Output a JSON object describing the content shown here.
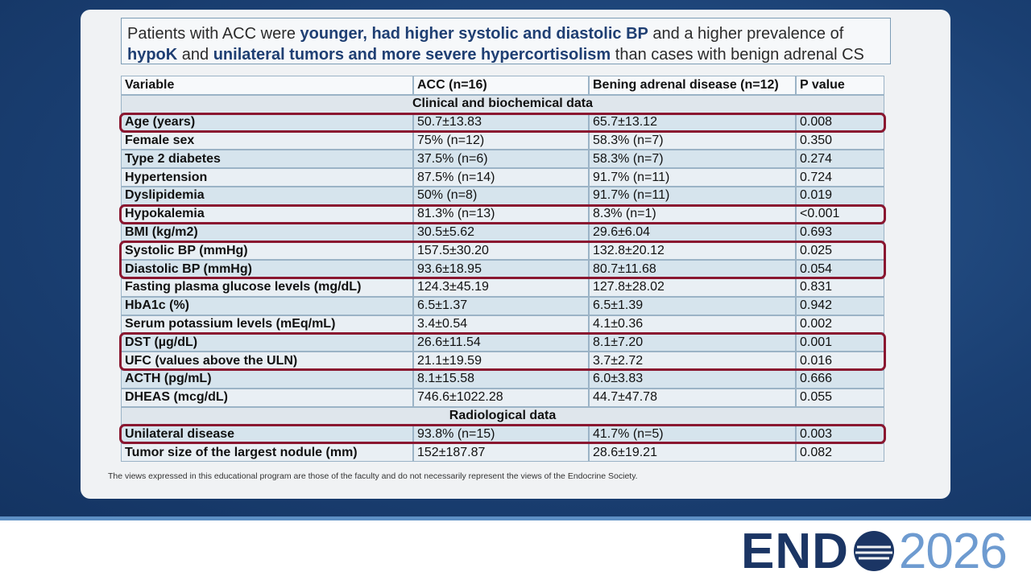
{
  "header": {
    "title_parts": [
      {
        "text": "Patients with ACC were ",
        "bold": false
      },
      {
        "text": "younger, had higher systolic and diastolic BP",
        "bold": true
      },
      {
        "text": " and a higher prevalence of ",
        "bold": false
      },
      {
        "text": "hypoK",
        "bold": true
      },
      {
        "text": " and ",
        "bold": false
      },
      {
        "text": "unilateral tumors and more severe hypercortisolism",
        "bold": true
      },
      {
        "text": " than cases with benign adrenal CS",
        "bold": false
      }
    ]
  },
  "table": {
    "columns": [
      "Variable",
      "ACC (n=16)",
      "Bening adrenal disease (n=12)",
      "P value"
    ],
    "rows": [
      {
        "section": "Clinical and biochemical data"
      },
      {
        "cells": [
          "Age (years)",
          "50.7±13.83",
          "65.7±13.12",
          "0.008"
        ],
        "highlight": true
      },
      {
        "cells": [
          "Female sex",
          "75% (n=12)",
          "58.3% (n=7)",
          "0.350"
        ],
        "highlight": false
      },
      {
        "cells": [
          "Type 2 diabetes",
          "37.5% (n=6)",
          "58.3% (n=7)",
          "0.274"
        ],
        "highlight": false
      },
      {
        "cells": [
          "Hypertension",
          "87.5% (n=14)",
          "91.7% (n=11)",
          "0.724"
        ],
        "highlight": false
      },
      {
        "cells": [
          "Dyslipidemia",
          "50% (n=8)",
          "91.7% (n=11)",
          "0.019"
        ],
        "highlight": false
      },
      {
        "cells": [
          "Hypokalemia",
          "81.3% (n=13)",
          "8.3% (n=1)",
          "<0.001"
        ],
        "highlight": true
      },
      {
        "cells": [
          "BMI (kg/m2)",
          "30.5±5.62",
          "29.6±6.04",
          "0.693"
        ],
        "highlight": false
      },
      {
        "cells": [
          "Systolic BP (mmHg)",
          "157.5±30.20",
          "132.8±20.12",
          "0.025"
        ],
        "highlight": true
      },
      {
        "cells": [
          "Diastolic BP (mmHg)",
          "93.6±18.95",
          "80.7±11.68",
          "0.054"
        ],
        "highlight": true
      },
      {
        "cells": [
          "Fasting plasma glucose levels (mg/dL)",
          "124.3±45.19",
          "127.8±28.02",
          "0.831"
        ],
        "highlight": false
      },
      {
        "cells": [
          "HbA1c (%)",
          "6.5±1.37",
          "6.5±1.39",
          "0.942"
        ],
        "highlight": false
      },
      {
        "cells": [
          "Serum potassium levels (mEq/mL)",
          "3.4±0.54",
          "4.1±0.36",
          "0.002"
        ],
        "highlight": false
      },
      {
        "cells": [
          "DST (µg/dL)",
          "26.6±11.54",
          "8.1±7.20",
          "0.001"
        ],
        "highlight": true
      },
      {
        "cells": [
          "UFC (values above the ULN)",
          "21.1±19.59",
          "3.7±2.72",
          "0.016"
        ],
        "highlight": true
      },
      {
        "cells": [
          "ACTH (pg/mL)",
          "8.1±15.58",
          "6.0±3.83",
          "0.666"
        ],
        "highlight": false
      },
      {
        "cells": [
          "DHEAS (mcg/dL)",
          "746.6±1022.28",
          "44.7±47.78",
          "0.055"
        ],
        "highlight": false
      },
      {
        "section": "Radiological data"
      },
      {
        "cells": [
          "Unilateral disease",
          "93.8% (n=15)",
          "41.7% (n=5)",
          "0.003"
        ],
        "highlight": true
      },
      {
        "cells": [
          "Tumor size of the largest nodule (mm)",
          "152±187.87",
          "28.6±19.21",
          "0.082"
        ],
        "highlight": false
      }
    ]
  },
  "footer": {
    "disclaimer": "The views expressed in this educational program are those of the faculty and do not necessarily represent the views of the Endocrine Society.",
    "logo_left": "END",
    "logo_right": "2026"
  }
}
